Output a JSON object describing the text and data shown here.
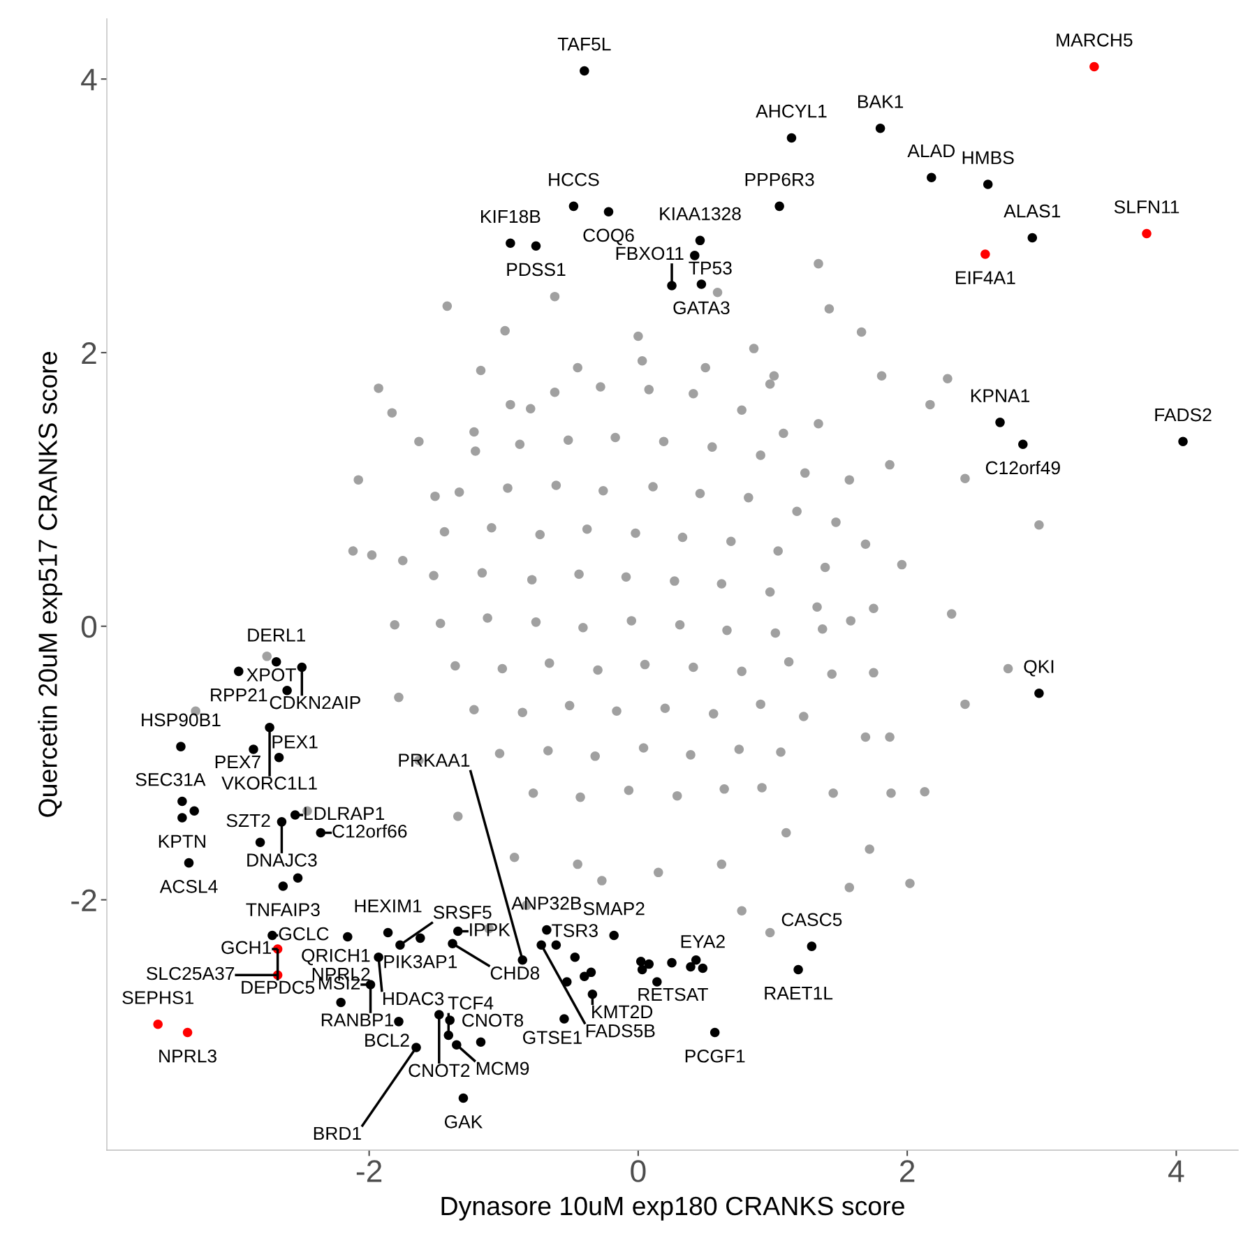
{
  "chart_data": {
    "type": "scatter",
    "xlabel": "Dynasore 10uM exp180 CRANKS score",
    "ylabel": "Quercetin 20uM exp517 CRANKS score",
    "xlim": [
      -3.95,
      4.46
    ],
    "ylim": [
      -3.83,
      4.44
    ],
    "xticks": [
      {
        "value": -2,
        "label": "-2"
      },
      0,
      2,
      4
    ],
    "yticks": [
      {
        "value": -2,
        "label": "-2"
      },
      0,
      2,
      4
    ],
    "grid": false,
    "marker": "circle",
    "series": [
      {
        "color": "#a0a0a0",
        "x": [
          -1.42,
          -0.62,
          1.34,
          0.59,
          1.42,
          -0.99,
          -1.93,
          -1.83,
          2.3,
          2.17,
          2.43,
          2.98,
          2.75,
          2.43,
          2.33,
          2.02,
          2.13,
          1.57,
          -2.46,
          -3.29,
          -2.76,
          -2.08,
          -2.12,
          -1.98,
          -1.63,
          -1.17,
          -1.11,
          -0.83,
          -0.27,
          0.77,
          0.98,
          1.72,
          1.88,
          1.87,
          1.96,
          1.87,
          1.81,
          1.66,
          1.01,
          0.86,
          0.0,
          -0.45,
          -0.8,
          -1.22,
          -1.51,
          -1.75,
          -1.81,
          -1.78,
          -1.63,
          -1.34,
          -0.92,
          -0.45,
          0.15,
          0.62,
          1.1,
          1.45,
          1.69,
          1.75,
          1.75,
          1.69,
          1.57,
          1.34,
          0.98,
          0.5,
          0.03,
          -0.95,
          -0.62,
          -0.28,
          0.08,
          0.41,
          0.77,
          1.08,
          -1.21,
          -0.88,
          -0.52,
          -0.17,
          0.19,
          0.55,
          0.91,
          1.24,
          -1.33,
          -0.97,
          -0.61,
          -0.26,
          0.11,
          0.46,
          0.82,
          1.18,
          1.47,
          -1.44,
          -1.09,
          -0.73,
          -0.38,
          -0.02,
          0.33,
          0.69,
          1.04,
          1.39,
          -1.52,
          -1.16,
          -0.79,
          -0.44,
          -0.09,
          0.27,
          0.62,
          0.98,
          1.33,
          1.58,
          -1.47,
          -1.12,
          -0.76,
          -0.41,
          -0.05,
          0.31,
          0.66,
          1.02,
          1.37,
          -1.36,
          -1.01,
          -0.66,
          -0.3,
          0.05,
          0.41,
          0.77,
          1.12,
          1.44,
          -1.22,
          -0.86,
          -0.51,
          -0.16,
          0.2,
          0.56,
          0.91,
          1.23,
          -1.03,
          -0.67,
          -0.32,
          0.04,
          0.39,
          0.75,
          1.06,
          -0.78,
          -0.43,
          -0.07,
          0.29,
          0.64,
          0.92
        ],
        "values": [
          2.34,
          2.41,
          2.65,
          2.44,
          2.32,
          2.16,
          1.74,
          1.56,
          1.81,
          1.62,
          1.08,
          0.74,
          -0.31,
          -0.57,
          0.09,
          -1.88,
          -1.21,
          -1.91,
          -1.35,
          -0.62,
          -0.22,
          1.07,
          0.55,
          0.52,
          1.35,
          1.87,
          -2.21,
          -2.04,
          -1.86,
          -2.08,
          -2.24,
          -1.63,
          -1.22,
          -0.81,
          0.45,
          1.18,
          1.83,
          2.15,
          1.83,
          2.03,
          2.12,
          1.89,
          1.59,
          1.42,
          0.95,
          0.48,
          0.01,
          -0.52,
          -0.98,
          -1.39,
          -1.69,
          -1.74,
          -1.8,
          -1.74,
          -1.51,
          -1.22,
          -0.81,
          -0.34,
          0.13,
          0.6,
          1.07,
          1.48,
          1.77,
          1.89,
          1.94,
          1.62,
          1.71,
          1.75,
          1.73,
          1.7,
          1.58,
          1.41,
          1.28,
          1.33,
          1.36,
          1.38,
          1.35,
          1.31,
          1.25,
          1.12,
          0.98,
          1.01,
          1.03,
          0.99,
          1.02,
          0.97,
          0.94,
          0.84,
          0.76,
          0.69,
          0.72,
          0.67,
          0.71,
          0.68,
          0.65,
          0.62,
          0.55,
          0.43,
          0.37,
          0.39,
          0.34,
          0.38,
          0.36,
          0.33,
          0.31,
          0.25,
          0.14,
          0.04,
          0.02,
          0.06,
          0.03,
          -0.01,
          0.04,
          0.01,
          -0.03,
          -0.05,
          -0.02,
          -0.29,
          -0.31,
          -0.27,
          -0.32,
          -0.28,
          -0.3,
          -0.33,
          -0.26,
          -0.35,
          -0.61,
          -0.63,
          -0.58,
          -0.62,
          -0.6,
          -0.64,
          -0.57,
          -0.66,
          -0.93,
          -0.91,
          -0.95,
          -0.89,
          -0.94,
          -0.9,
          -0.92,
          -1.22,
          -1.25,
          -1.2,
          -1.24,
          -1.19,
          -1.18
        ]
      },
      {
        "color": "#000000",
        "x": [
          -0.4,
          1.8,
          1.14,
          2.18,
          2.6,
          -0.48,
          -0.22,
          -0.95,
          -0.76,
          1.05,
          0.46,
          0.42,
          0.25,
          0.47,
          2.93,
          2.69,
          2.86,
          4.05,
          2.98,
          -2.69,
          -2.97,
          -2.5,
          -2.61,
          -2.74,
          -3.4,
          -2.86,
          -2.67,
          -3.39,
          -3.3,
          -3.39,
          -2.55,
          -2.65,
          -2.36,
          -2.81,
          -3.34,
          -2.53,
          -2.64,
          -2.72,
          -2.16,
          -1.86,
          -1.77,
          -1.62,
          -1.34,
          -1.38,
          -1.93,
          -1.99,
          -2.21,
          -1.78,
          -1.65,
          -1.48,
          -1.4,
          -1.41,
          -1.35,
          -1.17,
          -1.3,
          -0.68,
          -0.72,
          -0.61,
          -0.86,
          -0.47,
          -0.18,
          -0.35,
          -0.4,
          -0.53,
          -0.34,
          -0.55,
          0.02,
          0.08,
          0.03,
          0.14,
          0.25,
          0.43,
          0.39,
          0.48,
          1.19,
          0.57,
          1.29
        ],
        "values": [
          4.06,
          3.64,
          3.57,
          3.28,
          3.23,
          3.07,
          3.03,
          2.8,
          2.78,
          3.07,
          2.82,
          2.71,
          2.49,
          2.5,
          2.84,
          1.49,
          1.33,
          1.35,
          -0.49,
          -0.26,
          -0.33,
          -0.3,
          -0.47,
          -0.74,
          -0.88,
          -0.9,
          -0.96,
          -1.28,
          -1.35,
          -1.4,
          -1.38,
          -1.43,
          -1.51,
          -1.58,
          -1.73,
          -1.84,
          -1.9,
          -2.26,
          -2.27,
          -2.24,
          -2.33,
          -2.28,
          -2.23,
          -2.32,
          -2.42,
          -2.62,
          -2.75,
          -2.89,
          -3.08,
          -2.84,
          -2.88,
          -2.99,
          -3.06,
          -3.04,
          -3.45,
          -2.22,
          -2.33,
          -2.33,
          -2.44,
          -2.42,
          -2.26,
          -2.53,
          -2.56,
          -2.6,
          -2.69,
          -2.87,
          -2.45,
          -2.47,
          -2.51,
          -2.6,
          -2.46,
          -2.44,
          -2.49,
          -2.5,
          -2.51,
          -2.97,
          -2.34
        ]
      },
      {
        "color": "#ff0000",
        "x": [
          3.39,
          2.58,
          3.78,
          -2.68,
          -2.68,
          -3.57,
          -3.35
        ],
        "values": [
          4.09,
          2.72,
          2.87,
          -2.36,
          -2.55,
          -2.91,
          -2.97
        ]
      }
    ],
    "annotations": [
      {
        "text": "TAF5L",
        "x": -0.4,
        "y": 4.06
      },
      {
        "text": "MARCH5",
        "x": 3.39,
        "y": 4.09
      },
      {
        "text": "BAK1",
        "x": 1.8,
        "y": 3.64
      },
      {
        "text": "AHCYL1",
        "x": 1.14,
        "y": 3.57
      },
      {
        "text": "ALAD",
        "x": 2.18,
        "y": 3.28
      },
      {
        "text": "HMBS",
        "x": 2.6,
        "y": 3.23
      },
      {
        "text": "HCCS",
        "x": -0.48,
        "y": 3.07
      },
      {
        "text": "PPP6R3",
        "x": 1.05,
        "y": 3.07
      },
      {
        "text": "KIF18B",
        "x": -0.95,
        "y": 2.8
      },
      {
        "text": "COQ6",
        "x": -0.22,
        "y": 3.03
      },
      {
        "text": "KIAA1328",
        "x": 0.46,
        "y": 2.82
      },
      {
        "text": "ALAS1",
        "x": 2.93,
        "y": 2.84
      },
      {
        "text": "SLFN11",
        "x": 3.78,
        "y": 2.87
      },
      {
        "text": "PDSS1",
        "x": -0.76,
        "y": 2.78
      },
      {
        "text": "TP53",
        "x": 0.42,
        "y": 2.71
      },
      {
        "text": "GATA3",
        "x": 0.47,
        "y": 2.5
      },
      {
        "text": "EIF4A1",
        "x": 2.58,
        "y": 2.72
      },
      {
        "text": "FBXO11",
        "x": 0.25,
        "y": 2.49
      },
      {
        "text": "KPNA1",
        "x": 2.69,
        "y": 1.49
      },
      {
        "text": "FADS2",
        "x": 4.05,
        "y": 1.35
      },
      {
        "text": "C12orf49",
        "x": 2.86,
        "y": 1.33
      },
      {
        "text": "QKI",
        "x": 2.98,
        "y": -0.49
      },
      {
        "text": "DERL1",
        "x": -2.69,
        "y": -0.26
      },
      {
        "text": "RPP21",
        "x": -2.97,
        "y": -0.33
      },
      {
        "text": "CDKN2AIP",
        "x": -2.5,
        "y": -0.3
      },
      {
        "text": "XPOT",
        "x": -2.61,
        "y": -0.47
      },
      {
        "text": "HSP90B1",
        "x": -3.4,
        "y": -0.88
      },
      {
        "text": "VKORC1L1",
        "x": -2.74,
        "y": -0.74
      },
      {
        "text": "PEX7",
        "x": -2.86,
        "y": -0.9
      },
      {
        "text": "PEX1",
        "x": -2.67,
        "y": -0.96
      },
      {
        "text": "SEC31A",
        "x": -3.39,
        "y": -1.28
      },
      {
        "text": "DNAJC3",
        "x": -2.65,
        "y": -1.43
      },
      {
        "text": "LDLRAP1",
        "x": -2.55,
        "y": -1.38
      },
      {
        "text": "C12orf66",
        "x": -2.36,
        "y": -1.51
      },
      {
        "text": "KPTN",
        "x": -3.39,
        "y": -1.4
      },
      {
        "text": "SZT2",
        "x": -2.81,
        "y": -1.58
      },
      {
        "text": "TNFAIP3",
        "x": -2.64,
        "y": -1.9
      },
      {
        "text": "ACSL4",
        "x": -3.34,
        "y": -1.73
      },
      {
        "text": "HEXIM1",
        "x": -1.86,
        "y": -2.24
      },
      {
        "text": "PIK3AP1",
        "x": -1.62,
        "y": -2.28
      },
      {
        "text": "ANP32B",
        "x": -0.68,
        "y": -2.22
      },
      {
        "text": "QRICH1",
        "x": -2.16,
        "y": -2.27
      },
      {
        "text": "SRSF5",
        "x": -1.77,
        "y": -2.33
      },
      {
        "text": "IPPK",
        "x": -1.34,
        "y": -2.23
      },
      {
        "text": "SMAP2",
        "x": -0.18,
        "y": -2.26
      },
      {
        "text": "GCLC",
        "x": -2.72,
        "y": -2.26
      },
      {
        "text": "CASC5",
        "x": 1.29,
        "y": -2.34
      },
      {
        "text": "EYA2",
        "x": 0.48,
        "y": -2.5
      },
      {
        "text": "TSR3",
        "x": -0.47,
        "y": -2.42
      },
      {
        "text": "DEPDC5",
        "x": -2.68,
        "y": -2.36
      },
      {
        "text": "GCH1",
        "x": -2.68,
        "y": -2.36
      },
      {
        "text": "HDAC3",
        "x": -1.93,
        "y": -2.42
      },
      {
        "text": "CHD8",
        "x": -1.38,
        "y": -2.32
      },
      {
        "text": "PRKAA1",
        "x": -0.86,
        "y": -2.44
      },
      {
        "text": "FADS5B",
        "x": -0.72,
        "y": -2.33
      },
      {
        "text": "RAET1L",
        "x": 1.19,
        "y": -2.51
      },
      {
        "text": "SEPHS1",
        "x": -3.57,
        "y": -2.91
      },
      {
        "text": "SLC25A37",
        "x": -2.68,
        "y": -2.55
      },
      {
        "text": "RANBP1",
        "x": -1.99,
        "y": -2.62
      },
      {
        "text": "CNOT2",
        "x": -1.48,
        "y": -2.84
      },
      {
        "text": "KMT2D",
        "x": -0.34,
        "y": -2.69
      },
      {
        "text": "RETSAT",
        "x": 0.14,
        "y": -2.6
      },
      {
        "text": "MSI2",
        "x": -1.99,
        "y": -2.62
      },
      {
        "text": "NPRL3",
        "x": -3.35,
        "y": -2.97
      },
      {
        "text": "CNOT8",
        "x": -1.17,
        "y": -3.04
      },
      {
        "text": "PCGF1",
        "x": 0.57,
        "y": -2.97
      },
      {
        "text": "NPRL2",
        "x": -2.21,
        "y": -2.75
      },
      {
        "text": "BCL2",
        "x": -1.78,
        "y": -2.89
      },
      {
        "text": "TCF4",
        "x": -1.41,
        "y": -2.99
      },
      {
        "text": "MCM9",
        "x": -1.35,
        "y": -3.06
      },
      {
        "text": "GTSE1",
        "x": -0.55,
        "y": -2.87
      },
      {
        "text": "BRD1",
        "x": -1.65,
        "y": -3.08
      },
      {
        "text": "GAK",
        "x": -1.3,
        "y": -3.45
      }
    ]
  }
}
